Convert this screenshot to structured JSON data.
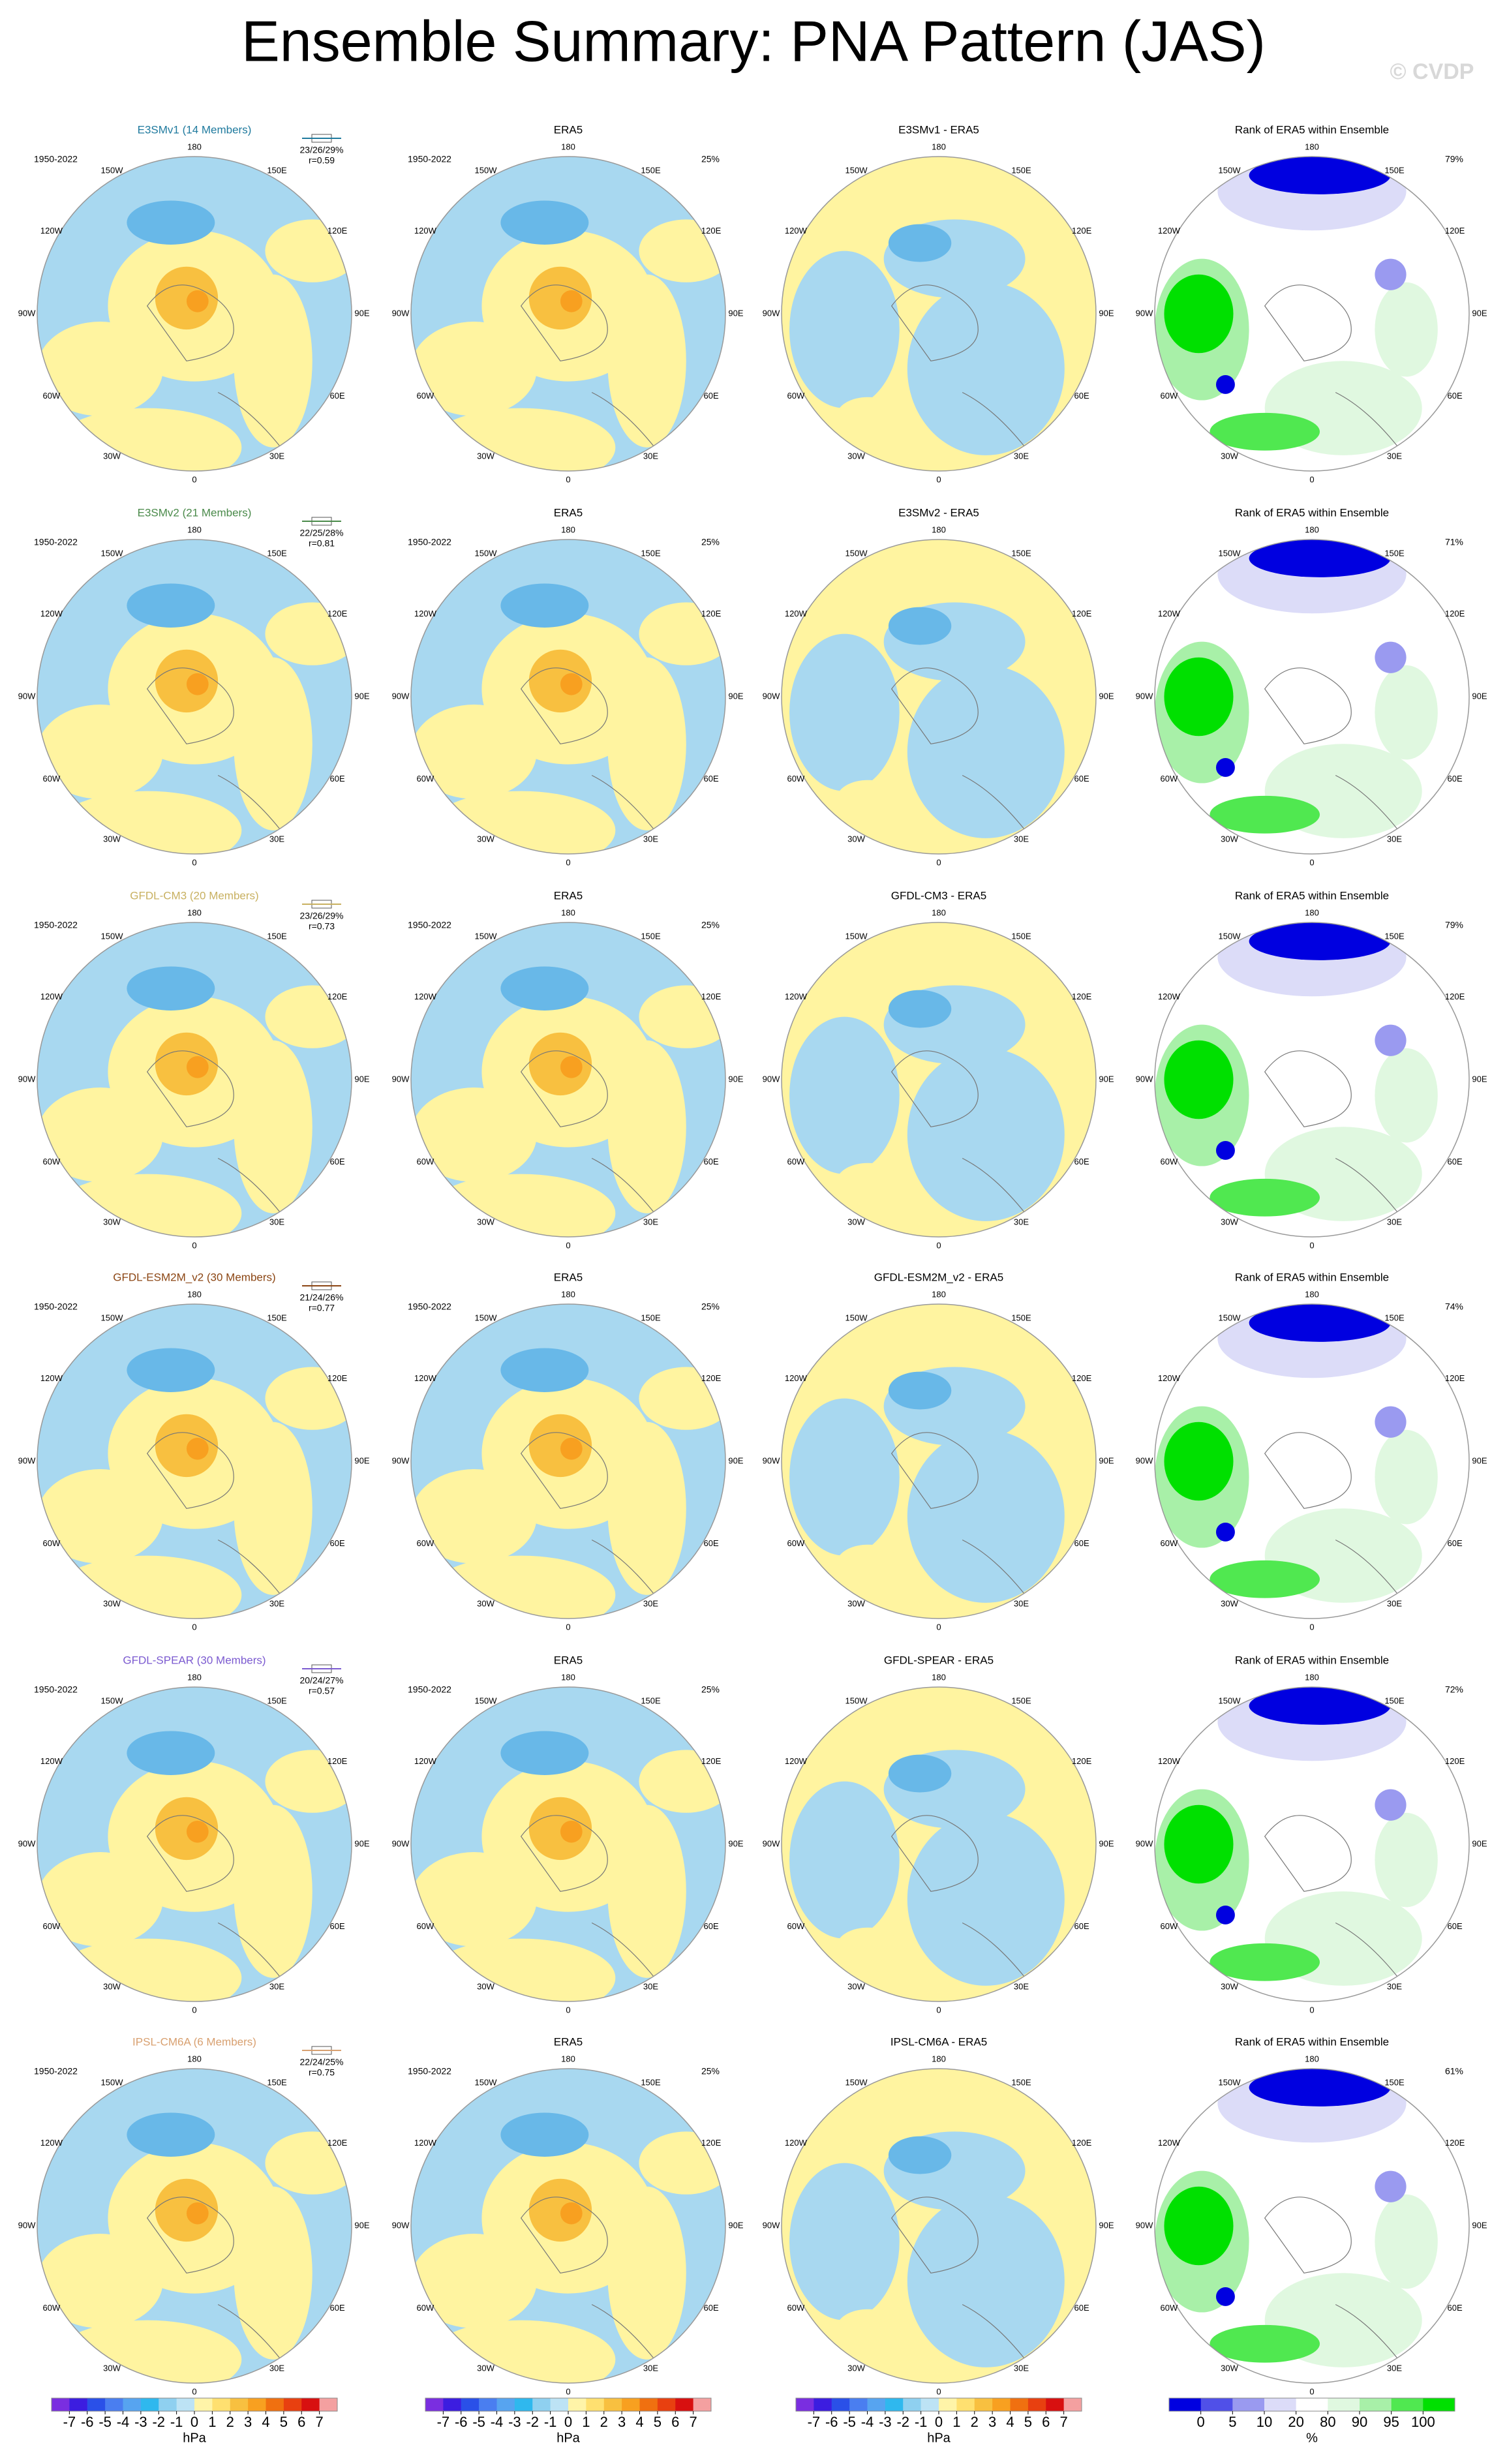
{
  "title": "Ensemble Summary: PNA Pattern (JAS)",
  "watermark": "© CVDP",
  "period": "1950-2022",
  "era_title": "ERA5",
  "era_pct": "25%",
  "rank_title": "Rank of ERA5 within Ensemble",
  "lon_labels": [
    "180",
    "150E",
    "120E",
    "90E",
    "60E",
    "30E",
    "0",
    "30W",
    "60W",
    "90W",
    "120W",
    "150W"
  ],
  "rows": [
    {
      "model": "E3SMv1 (14 Members)",
      "model_color": "#1f7a9e",
      "stats": "23/26/29%",
      "corr": "r=0.59",
      "diff_title": "E3SMv1 - ERA5",
      "rank_pct": "79%"
    },
    {
      "model": "E3SMv2 (21 Members)",
      "model_color": "#4a8a4a",
      "stats": "22/25/28%",
      "corr": "r=0.81",
      "diff_title": "E3SMv2 - ERA5",
      "rank_pct": "71%"
    },
    {
      "model": "GFDL-CM3 (20 Members)",
      "model_color": "#c8b060",
      "stats": "23/26/29%",
      "corr": "r=0.73",
      "diff_title": "GFDL-CM3 - ERA5",
      "rank_pct": "79%"
    },
    {
      "model": "GFDL-ESM2M_v2 (30 Members)",
      "model_color": "#8b4513",
      "stats": "21/24/26%",
      "corr": "r=0.77",
      "diff_title": "GFDL-ESM2M_v2 - ERA5",
      "rank_pct": "74%"
    },
    {
      "model": "GFDL-SPEAR (30 Members)",
      "model_color": "#7b5ad0",
      "stats": "20/24/27%",
      "corr": "r=0.57",
      "diff_title": "GFDL-SPEAR - ERA5",
      "rank_pct": "72%"
    },
    {
      "model": "IPSL-CM6A (6 Members)",
      "model_color": "#d8a070",
      "stats": "22/24/25%",
      "corr": "r=0.75",
      "diff_title": "IPSL-CM6A - ERA5",
      "rank_pct": "61%"
    }
  ],
  "colorbars": {
    "hpa": {
      "ticks": [
        -7,
        -6,
        -5,
        -4,
        -3,
        -2,
        -1,
        0,
        1,
        2,
        3,
        4,
        5,
        6,
        7
      ],
      "unit": "hPa",
      "colors": [
        "#7a2ee0",
        "#3c1de0",
        "#2a50e8",
        "#4a7ef0",
        "#57a4f0",
        "#2fb8ee",
        "#8fd0f0",
        "#bde3f5",
        "#fff4a8",
        "#ffe070",
        "#f8c040",
        "#f8a020",
        "#f07010",
        "#e84010",
        "#d81010",
        "#f4a0a0"
      ]
    },
    "rank": {
      "ticks": [
        0,
        5,
        10,
        20,
        80,
        90,
        95,
        100
      ],
      "unit": "%",
      "colors": [
        "#0000e0",
        "#5050e8",
        "#9a9af0",
        "#dcdcf8",
        "#ffffff",
        "#e0f8e0",
        "#a8f0a8",
        "#50e850",
        "#00e000"
      ]
    }
  }
}
